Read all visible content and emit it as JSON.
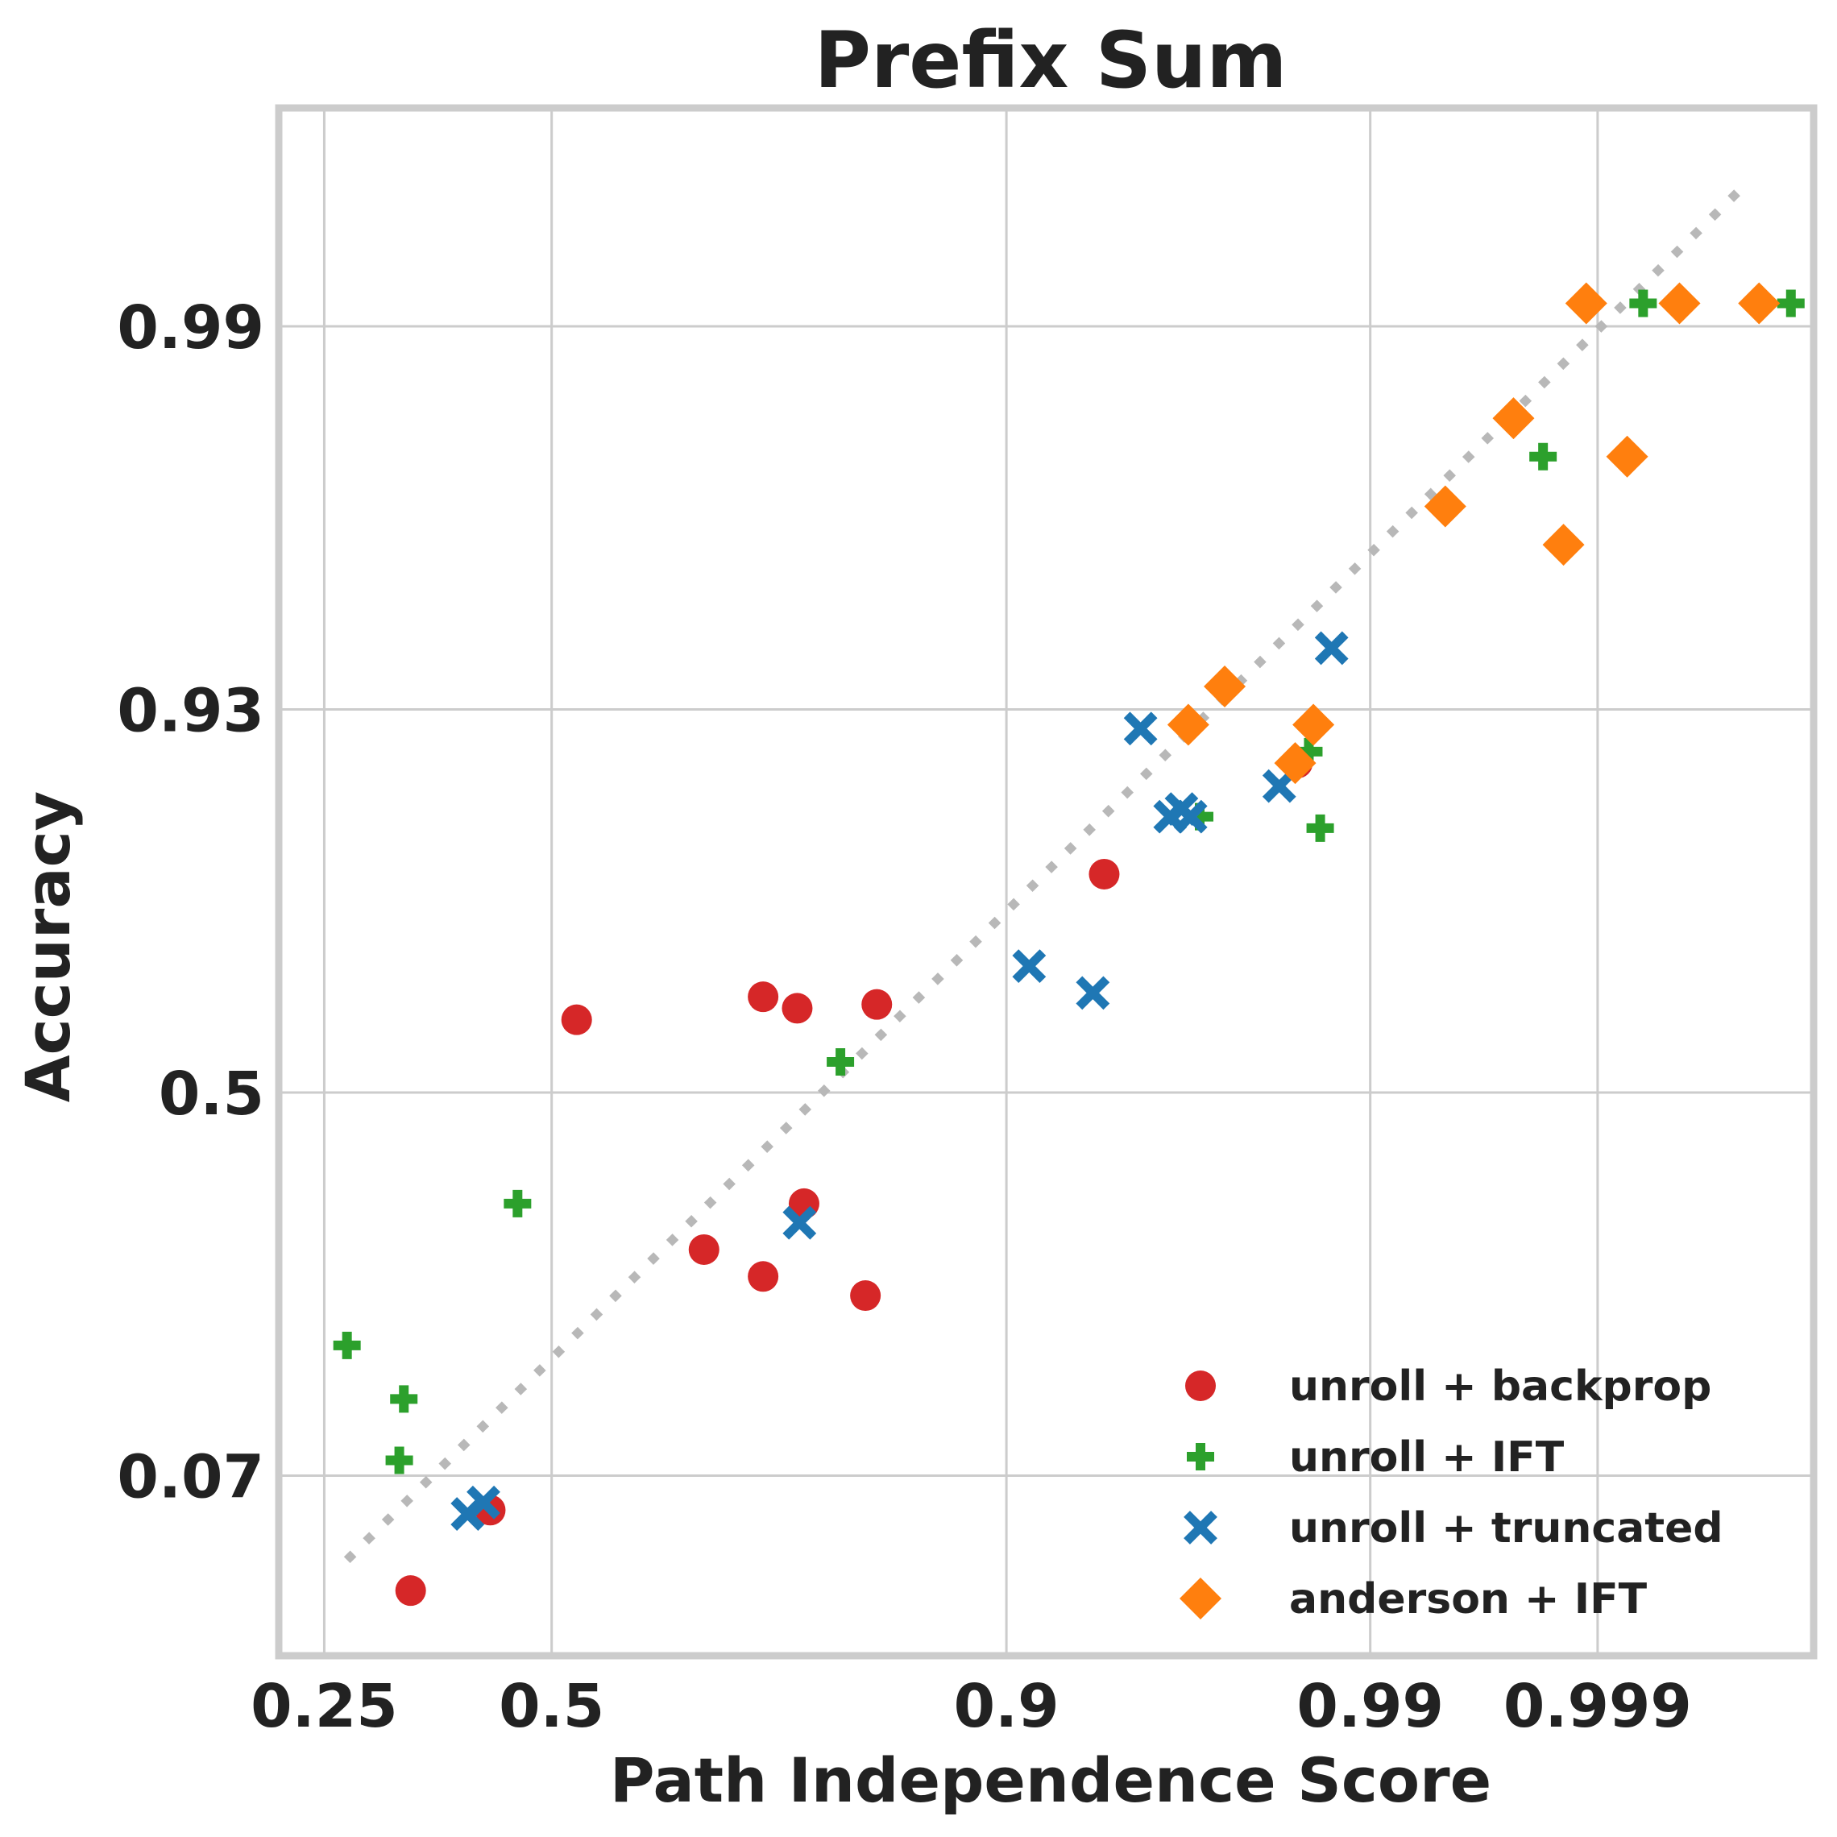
{
  "chart_data": {
    "type": "scatter",
    "title": "Prefix Sum",
    "xlabel": "Path Independence Score",
    "ylabel": "Accuracy",
    "x_ticks": [
      {
        "pos": 0,
        "label": "0.25"
      },
      {
        "pos": 1,
        "label": "0.5"
      },
      {
        "pos": 3,
        "label": "0.9"
      },
      {
        "pos": 4.6,
        "label": "0.99"
      },
      {
        "pos": 5.6,
        "label": "0.999"
      }
    ],
    "y_ticks": [
      {
        "pos": 0,
        "label": "0.07"
      },
      {
        "pos": 1,
        "label": "0.5"
      },
      {
        "pos": 2,
        "label": "0.93"
      },
      {
        "pos": 3,
        "label": "0.99"
      }
    ],
    "xlim": [
      -0.2,
      6.55
    ],
    "ylim": [
      -0.47,
      3.57
    ],
    "grid": true,
    "legend_position": "bottom-right",
    "reference_line": {
      "style": "dotted",
      "color": "#b8b8b8",
      "from": [
        0.1,
        -0.22
      ],
      "to": [
        6.25,
        3.37
      ]
    },
    "series": [
      {
        "name": "unroll + backprop",
        "marker": "circle",
        "color": "#d62728",
        "points": [
          [
            0.38,
            -0.3
          ],
          [
            0.73,
            -0.09
          ],
          [
            1.11,
            1.19
          ],
          [
            1.67,
            0.59
          ],
          [
            1.93,
            0.52
          ],
          [
            1.93,
            1.25
          ],
          [
            2.08,
            1.22
          ],
          [
            2.11,
            0.71
          ],
          [
            2.38,
            0.47
          ],
          [
            2.43,
            1.23
          ],
          [
            3.43,
            1.57
          ],
          [
            4.28,
            1.86
          ]
        ]
      },
      {
        "name": "unroll + IFT",
        "marker": "plus",
        "color": "#2ca02c",
        "points": [
          [
            0.1,
            0.34
          ],
          [
            0.33,
            0.04
          ],
          [
            0.35,
            0.2
          ],
          [
            0.85,
            0.71
          ],
          [
            2.27,
            1.08
          ],
          [
            3.85,
            1.72
          ],
          [
            4.33,
            1.89
          ],
          [
            4.38,
            1.69
          ],
          [
            5.36,
            2.66
          ],
          [
            5.8,
            3.06
          ],
          [
            6.45,
            3.06
          ]
        ]
      },
      {
        "name": "unroll + truncated",
        "marker": "x",
        "color": "#1f77b4",
        "points": [
          [
            0.63,
            -0.1
          ],
          [
            0.7,
            -0.07
          ],
          [
            2.09,
            0.66
          ],
          [
            3.1,
            1.33
          ],
          [
            3.38,
            1.26
          ],
          [
            3.59,
            1.95
          ],
          [
            3.72,
            1.72
          ],
          [
            3.77,
            1.74
          ],
          [
            3.81,
            1.72
          ],
          [
            4.2,
            1.8
          ],
          [
            4.43,
            2.16
          ]
        ]
      },
      {
        "name": "anderson + IFT",
        "marker": "diamond",
        "color": "#ff7f0e",
        "points": [
          [
            3.8,
            1.96
          ],
          [
            3.96,
            2.06
          ],
          [
            4.27,
            1.86
          ],
          [
            4.35,
            1.96
          ],
          [
            4.93,
            2.53
          ],
          [
            5.23,
            2.76
          ],
          [
            5.45,
            2.43
          ],
          [
            5.55,
            3.06
          ],
          [
            5.73,
            2.66
          ],
          [
            5.96,
            3.06
          ],
          [
            6.31,
            3.06
          ]
        ]
      }
    ]
  }
}
